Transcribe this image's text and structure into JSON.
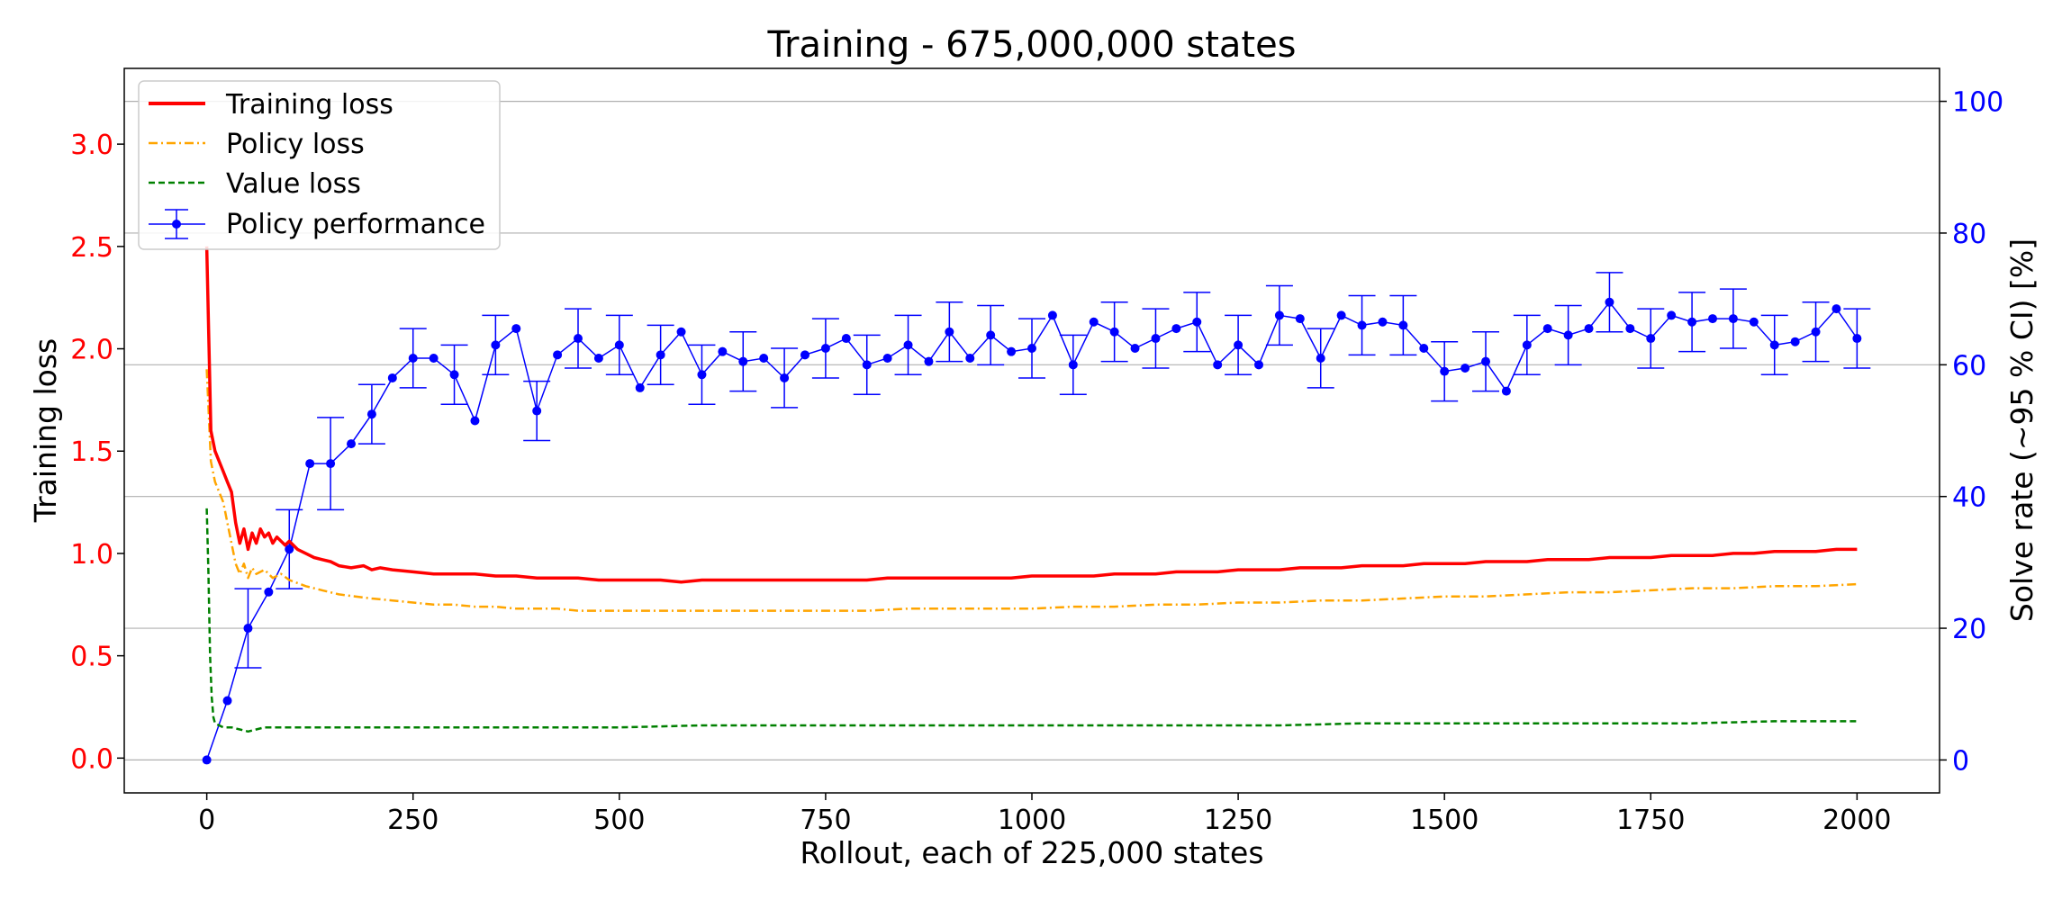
{
  "chart_data": {
    "type": "line",
    "title": "Training - 675,000,000 states",
    "xlabel": "Rollout, each of 225,000 states",
    "ylabel_left": "Training loss",
    "ylabel_right": "Solve rate (~95 % CI) [%]",
    "xlim": [
      -100,
      2100
    ],
    "ylim_left": [
      -0.17,
      3.37
    ],
    "ylim_right": [
      -5,
      105
    ],
    "x_ticks": [
      0,
      250,
      500,
      750,
      1000,
      1250,
      1500,
      1750,
      2000
    ],
    "y_ticks_left": [
      "0.0",
      "0.5",
      "1.0",
      "1.5",
      "2.0",
      "2.5",
      "3.0"
    ],
    "y_ticks_right": [
      "0",
      "20",
      "40",
      "60",
      "80",
      "100"
    ],
    "grid": "horizontal, right axis",
    "legend_position": "top-left",
    "colors": {
      "training_loss": "#ff0000",
      "policy_loss": "#ffa500",
      "value_loss": "#008000",
      "policy_performance": "#0000ff",
      "left_axis": "#ff0000",
      "right_axis": "#0000ff"
    },
    "legend": [
      "Training loss",
      "Policy loss",
      "Value loss",
      "Policy performance"
    ],
    "series_training_loss": {
      "name": "Training loss",
      "x": [
        0,
        5,
        10,
        15,
        20,
        25,
        30,
        35,
        40,
        45,
        50,
        55,
        60,
        65,
        70,
        75,
        80,
        85,
        90,
        95,
        100,
        110,
        120,
        130,
        140,
        150,
        160,
        175,
        190,
        200,
        210,
        225,
        250,
        275,
        300,
        325,
        350,
        375,
        400,
        425,
        450,
        475,
        500,
        525,
        550,
        575,
        600,
        625,
        650,
        675,
        700,
        725,
        750,
        775,
        800,
        825,
        850,
        875,
        900,
        925,
        950,
        975,
        1000,
        1025,
        1050,
        1075,
        1100,
        1125,
        1150,
        1175,
        1200,
        1225,
        1250,
        1275,
        1300,
        1325,
        1350,
        1375,
        1400,
        1425,
        1450,
        1475,
        1500,
        1525,
        1550,
        1575,
        1600,
        1625,
        1650,
        1675,
        1700,
        1725,
        1750,
        1775,
        1800,
        1825,
        1850,
        1875,
        1900,
        1925,
        1950,
        1975,
        2000
      ],
      "values": [
        2.5,
        1.6,
        1.5,
        1.45,
        1.4,
        1.35,
        1.3,
        1.15,
        1.05,
        1.12,
        1.02,
        1.1,
        1.05,
        1.12,
        1.08,
        1.1,
        1.05,
        1.08,
        1.06,
        1.04,
        1.06,
        1.02,
        1.0,
        0.98,
        0.97,
        0.96,
        0.94,
        0.93,
        0.94,
        0.92,
        0.93,
        0.92,
        0.91,
        0.9,
        0.9,
        0.9,
        0.89,
        0.89,
        0.88,
        0.88,
        0.88,
        0.87,
        0.87,
        0.87,
        0.87,
        0.86,
        0.87,
        0.87,
        0.87,
        0.87,
        0.87,
        0.87,
        0.87,
        0.87,
        0.87,
        0.88,
        0.88,
        0.88,
        0.88,
        0.88,
        0.88,
        0.88,
        0.89,
        0.89,
        0.89,
        0.89,
        0.9,
        0.9,
        0.9,
        0.91,
        0.91,
        0.91,
        0.92,
        0.92,
        0.92,
        0.93,
        0.93,
        0.93,
        0.94,
        0.94,
        0.94,
        0.95,
        0.95,
        0.95,
        0.96,
        0.96,
        0.96,
        0.97,
        0.97,
        0.97,
        0.98,
        0.98,
        0.98,
        0.99,
        0.99,
        0.99,
        1.0,
        1.0,
        1.01,
        1.01,
        1.01,
        1.02,
        1.02
      ]
    },
    "series_policy_loss": {
      "name": "Policy loss",
      "x": [
        0,
        5,
        10,
        15,
        20,
        25,
        30,
        35,
        40,
        45,
        50,
        55,
        60,
        70,
        80,
        90,
        100,
        120,
        140,
        160,
        180,
        200,
        225,
        250,
        275,
        300,
        325,
        350,
        375,
        400,
        425,
        450,
        475,
        500,
        550,
        600,
        650,
        700,
        750,
        800,
        850,
        900,
        950,
        1000,
        1050,
        1100,
        1150,
        1200,
        1250,
        1300,
        1350,
        1400,
        1450,
        1500,
        1550,
        1600,
        1650,
        1700,
        1750,
        1800,
        1850,
        1900,
        1950,
        2000
      ],
      "values": [
        1.9,
        1.45,
        1.35,
        1.3,
        1.25,
        1.15,
        1.05,
        0.95,
        0.9,
        0.95,
        0.88,
        0.93,
        0.9,
        0.92,
        0.88,
        0.9,
        0.87,
        0.84,
        0.82,
        0.8,
        0.79,
        0.78,
        0.77,
        0.76,
        0.75,
        0.75,
        0.74,
        0.74,
        0.73,
        0.73,
        0.73,
        0.72,
        0.72,
        0.72,
        0.72,
        0.72,
        0.72,
        0.72,
        0.72,
        0.72,
        0.73,
        0.73,
        0.73,
        0.73,
        0.74,
        0.74,
        0.75,
        0.75,
        0.76,
        0.76,
        0.77,
        0.77,
        0.78,
        0.79,
        0.79,
        0.8,
        0.81,
        0.81,
        0.82,
        0.83,
        0.83,
        0.84,
        0.84,
        0.85
      ]
    },
    "series_value_loss": {
      "name": "Value loss",
      "x": [
        0,
        2,
        4,
        6,
        8,
        10,
        15,
        20,
        30,
        40,
        50,
        60,
        70,
        80,
        100,
        150,
        200,
        250,
        300,
        400,
        500,
        600,
        700,
        800,
        900,
        1000,
        1100,
        1200,
        1300,
        1400,
        1500,
        1600,
        1700,
        1800,
        1900,
        2000
      ],
      "values": [
        1.22,
        0.9,
        0.5,
        0.3,
        0.2,
        0.17,
        0.16,
        0.15,
        0.15,
        0.14,
        0.13,
        0.14,
        0.15,
        0.15,
        0.15,
        0.15,
        0.15,
        0.15,
        0.15,
        0.15,
        0.15,
        0.16,
        0.16,
        0.16,
        0.16,
        0.16,
        0.16,
        0.16,
        0.16,
        0.17,
        0.17,
        0.17,
        0.17,
        0.17,
        0.18,
        0.18
      ]
    },
    "series_policy_performance": {
      "name": "Policy performance",
      "x": [
        0,
        25,
        50,
        75,
        100,
        125,
        150,
        175,
        200,
        225,
        250,
        275,
        300,
        325,
        350,
        375,
        400,
        425,
        450,
        475,
        500,
        525,
        550,
        575,
        600,
        625,
        650,
        675,
        700,
        725,
        750,
        775,
        800,
        825,
        850,
        875,
        900,
        925,
        950,
        975,
        1000,
        1025,
        1050,
        1075,
        1100,
        1125,
        1150,
        1175,
        1200,
        1225,
        1250,
        1275,
        1300,
        1325,
        1350,
        1375,
        1400,
        1425,
        1450,
        1475,
        1500,
        1525,
        1550,
        1575,
        1600,
        1625,
        1650,
        1675,
        1700,
        1725,
        1750,
        1775,
        1800,
        1825,
        1850,
        1875,
        1900,
        1925,
        1950,
        1975,
        2000
      ],
      "values": [
        0,
        9,
        20,
        25.5,
        32,
        45,
        45,
        48,
        52.5,
        58,
        61,
        61,
        58.5,
        51.5,
        63,
        65.5,
        53,
        61.5,
        64,
        61,
        63,
        56.5,
        61.5,
        65,
        58.5,
        62,
        60.5,
        61,
        58,
        61.5,
        62.5,
        64,
        60,
        61,
        63,
        60.5,
        65,
        61,
        64.5,
        62,
        62.5,
        67.5,
        60,
        66.5,
        65,
        62.5,
        64,
        65.5,
        66.5,
        60,
        63,
        60,
        67.5,
        67,
        61,
        67.5,
        66,
        66.5,
        66,
        62.5,
        59,
        59.5,
        60.5,
        56,
        63,
        65.5,
        64.5,
        65.5,
        69.5,
        65.5,
        64,
        67.5,
        66.5,
        67,
        67,
        66.5,
        63,
        63.5,
        65,
        68.5,
        64
      ],
      "ci_half_width": [
        0,
        0,
        6,
        0,
        6,
        0,
        7,
        0,
        4.5,
        0,
        4.5,
        0,
        4.5,
        0,
        4.5,
        0,
        4.5,
        0,
        4.5,
        0,
        4.5,
        0,
        4.5,
        0,
        4.5,
        0,
        4.5,
        0,
        4.5,
        0,
        4.5,
        0,
        4.5,
        0,
        4.5,
        0,
        4.5,
        0,
        4.5,
        0,
        4.5,
        0,
        4.5,
        0,
        4.5,
        0,
        4.5,
        0,
        4.5,
        0,
        4.5,
        0,
        4.5,
        0,
        4.5,
        0,
        4.5,
        0,
        4.5,
        0,
        4.5,
        0,
        4.5,
        0,
        4.5,
        0,
        4.5,
        0,
        4.5,
        0,
        4.5,
        0,
        4.5,
        0,
        4.5,
        0,
        4.5,
        0,
        4.5,
        0,
        4.5
      ]
    }
  }
}
